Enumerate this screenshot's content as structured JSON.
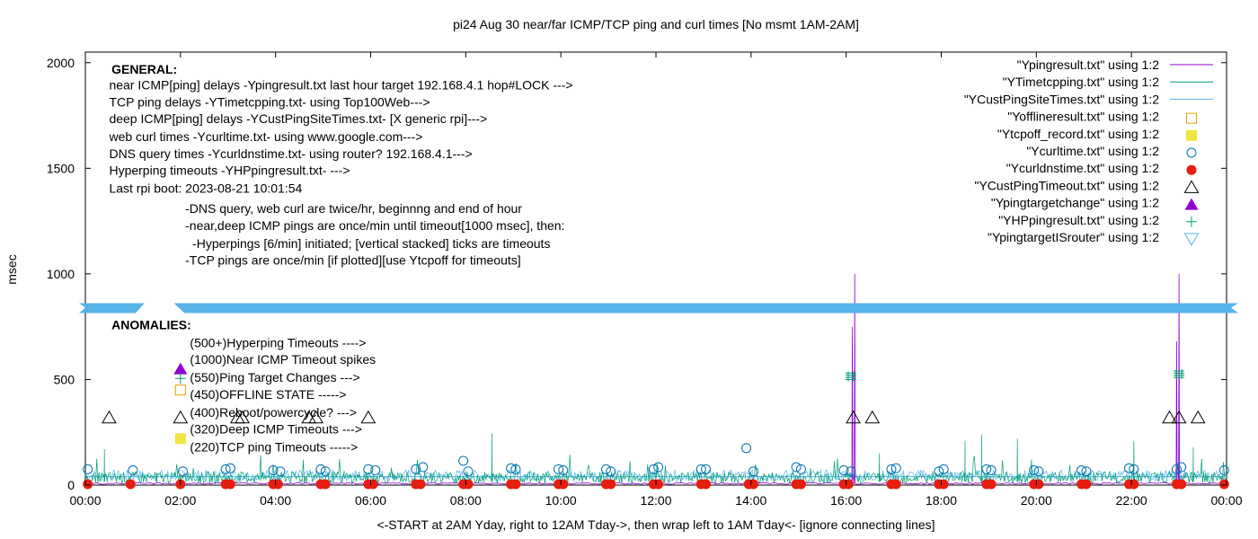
{
  "chart_data": {
    "type": "line",
    "title": "pi24 Aug 30  near/far ICMP/TCP ping and curl times [No msmt 1AM-2AM]",
    "xlabel": "<-START at 2AM Yday, right to 12AM Tday->, then wrap left to 1AM Tday<- [ignore connecting lines]",
    "ylabel": "msec",
    "xlim": [
      0,
      24
    ],
    "ylim": [
      0,
      2050
    ],
    "x_ticks": [
      "00:00",
      "02:00",
      "04:00",
      "06:00",
      "08:00",
      "10:00",
      "12:00",
      "14:00",
      "16:00",
      "18:00",
      "20:00",
      "22:00",
      "00:00"
    ],
    "y_ticks": [
      "0",
      "500",
      "1000",
      "1500",
      "2000"
    ],
    "grid": false,
    "legend_position": "top-right",
    "legend": [
      {
        "label": "\"Ypingresult.txt\" using 1:2",
        "color": "#9400d3",
        "marker": "line"
      },
      {
        "label": "\"YTimetcpping.txt\" using 1:2",
        "color": "#009e73",
        "marker": "line"
      },
      {
        "label": "\"YCustPingSiteTimes.txt\" using 1:2",
        "color": "#56b4e9",
        "marker": "line"
      },
      {
        "label": "\"Yofflineresult.txt\" using 1:2",
        "color": "#e69f00",
        "marker": "open-square"
      },
      {
        "label": "\"Ytcpoff_record.txt\" using 1:2",
        "color": "#f0e442",
        "marker": "filled-square"
      },
      {
        "label": "\"Ycurltime.txt\" using 1:2",
        "color": "#0072b2",
        "marker": "open-circle"
      },
      {
        "label": "\"Ycurldnstime.txt\" using 1:2",
        "color": "#e51e10",
        "marker": "filled-circle"
      },
      {
        "label": "\"YCustPingTimeout.txt\" using 1:2",
        "color": "#000000",
        "marker": "open-triangle"
      },
      {
        "label": "\"Ypingtargetchange\" using 1:2",
        "color": "#9400d3",
        "marker": "filled-triangle"
      },
      {
        "label": "\"YHPpingresult.txt\" using 1:2",
        "color": "#009e73",
        "marker": "plus"
      },
      {
        "label": "\"YpingtargetISrouter\" using 1:2",
        "color": "#56b4e9",
        "marker": "open-triangle-down"
      }
    ],
    "series": [
      {
        "name": "\"Ypingresult.txt\" using 1:2",
        "note_baseline": 8,
        "spikes": [
          {
            "x": 16.18,
            "y": 1000
          },
          {
            "x": 16.13,
            "y": 750
          },
          {
            "x": 23.0,
            "y": 1000
          },
          {
            "x": 22.95,
            "y": 680
          }
        ]
      },
      {
        "name": "\"YTimetcpping.txt\" using 1:2",
        "baseline": 25,
        "spikes": [
          {
            "x": 0.4,
            "y": 170
          },
          {
            "x": 1.5,
            "y": 60
          },
          {
            "x": 8.55,
            "y": 245
          },
          {
            "x": 16.7,
            "y": 150
          },
          {
            "x": 18.5,
            "y": 210
          },
          {
            "x": 18.85,
            "y": 240
          },
          {
            "x": 19.6,
            "y": 220
          },
          {
            "x": 22.05,
            "y": 210
          },
          {
            "x": 23.3,
            "y": 180
          }
        ]
      },
      {
        "name": "\"YCustPingSiteTimes.txt\" using 1:2",
        "baseline": 38,
        "flat_line_y": 40
      },
      {
        "name": "\"Ycurltime.txt\" using 1:2",
        "points": [
          [
            0.05,
            75
          ],
          [
            1.0,
            70
          ],
          [
            2.05,
            65
          ],
          [
            2.95,
            75
          ],
          [
            3.05,
            80
          ],
          [
            3.95,
            70
          ],
          [
            4.1,
            65
          ],
          [
            4.95,
            75
          ],
          [
            5.05,
            65
          ],
          [
            5.95,
            75
          ],
          [
            6.1,
            70
          ],
          [
            6.95,
            75
          ],
          [
            7.1,
            85
          ],
          [
            7.95,
            115
          ],
          [
            8.05,
            65
          ],
          [
            8.95,
            80
          ],
          [
            9.05,
            75
          ],
          [
            9.95,
            75
          ],
          [
            10.05,
            70
          ],
          [
            10.95,
            75
          ],
          [
            11.05,
            65
          ],
          [
            11.95,
            75
          ],
          [
            12.05,
            85
          ],
          [
            12.95,
            75
          ],
          [
            13.05,
            75
          ],
          [
            13.9,
            175
          ],
          [
            14.05,
            65
          ],
          [
            14.95,
            85
          ],
          [
            15.05,
            75
          ],
          [
            15.95,
            70
          ],
          [
            16.1,
            65
          ],
          [
            16.95,
            75
          ],
          [
            17.05,
            80
          ],
          [
            17.95,
            65
          ],
          [
            18.05,
            75
          ],
          [
            18.95,
            75
          ],
          [
            19.05,
            70
          ],
          [
            19.95,
            70
          ],
          [
            20.05,
            65
          ],
          [
            20.95,
            70
          ],
          [
            21.05,
            65
          ],
          [
            21.95,
            80
          ],
          [
            22.05,
            75
          ],
          [
            22.95,
            75
          ],
          [
            23.05,
            85
          ],
          [
            23.95,
            70
          ]
        ]
      },
      {
        "name": "\"Ycurldnstime.txt\" using 1:2",
        "points": [
          [
            0.05,
            0
          ],
          [
            0.95,
            0
          ],
          [
            2.0,
            0
          ],
          [
            2.95,
            0
          ],
          [
            3.05,
            0
          ],
          [
            3.95,
            0
          ],
          [
            4.05,
            0
          ],
          [
            4.95,
            0
          ],
          [
            5.05,
            0
          ],
          [
            5.95,
            0
          ],
          [
            6.05,
            0
          ],
          [
            6.95,
            0
          ],
          [
            7.05,
            0
          ],
          [
            7.95,
            0
          ],
          [
            8.05,
            0
          ],
          [
            8.95,
            0
          ],
          [
            9.05,
            0
          ],
          [
            9.95,
            0
          ],
          [
            10.05,
            0
          ],
          [
            10.95,
            0
          ],
          [
            11.05,
            0
          ],
          [
            11.95,
            0
          ],
          [
            12.05,
            0
          ],
          [
            12.95,
            0
          ],
          [
            13.05,
            0
          ],
          [
            13.95,
            0
          ],
          [
            14.05,
            0
          ],
          [
            14.95,
            0
          ],
          [
            15.05,
            0
          ],
          [
            15.95,
            0
          ],
          [
            16.05,
            0
          ],
          [
            16.95,
            0
          ],
          [
            17.05,
            0
          ],
          [
            17.95,
            0
          ],
          [
            18.05,
            0
          ],
          [
            18.95,
            0
          ],
          [
            19.05,
            0
          ],
          [
            19.95,
            0
          ],
          [
            20.05,
            0
          ],
          [
            20.95,
            0
          ],
          [
            21.05,
            0
          ],
          [
            21.95,
            0
          ],
          [
            22.05,
            0
          ],
          [
            22.95,
            0
          ],
          [
            23.05,
            0
          ],
          [
            23.95,
            0
          ]
        ]
      },
      {
        "name": "\"YCustPingTimeout.txt\" using 1:2",
        "points": [
          [
            0.5,
            320
          ],
          [
            3.2,
            320
          ],
          [
            3.3,
            320
          ],
          [
            4.7,
            320
          ],
          [
            4.85,
            320
          ],
          [
            5.95,
            320
          ],
          [
            16.15,
            320
          ],
          [
            16.55,
            320
          ],
          [
            22.8,
            320
          ],
          [
            23.0,
            320
          ],
          [
            23.4,
            320
          ]
        ]
      },
      {
        "name": "\"YHPpingresult.txt\" using 1:2",
        "points": [
          [
            16.1,
            500
          ],
          [
            16.1,
            510
          ],
          [
            16.1,
            520
          ],
          [
            16.1,
            530
          ],
          [
            23.0,
            510
          ],
          [
            23.0,
            520
          ],
          [
            23.0,
            530
          ],
          [
            23.0,
            540
          ]
        ]
      }
    ],
    "annotations": [
      {
        "text": "GENERAL:",
        "x": 0.55,
        "y": 1970,
        "bold": true
      },
      {
        "text": "near ICMP[ping] delays -Ypingresult.txt last hour target 192.168.4.1 hop#LOCK --->",
        "x": 0.5,
        "y": 1895
      },
      {
        "text": "TCP ping delays -YTimetcpping.txt- using Top100Web--->",
        "x": 0.5,
        "y": 1815
      },
      {
        "text": "deep ICMP[ping] delays -YCustPingSiteTimes.txt- [X generic rpi]--->",
        "x": 0.5,
        "y": 1735
      },
      {
        "text": "web curl times -Ycurltime.txt- using www.google.com--->",
        "x": 0.5,
        "y": 1650
      },
      {
        "text": "DNS query times -Ycurldnstime.txt- using router? 192.168.4.1--->",
        "x": 0.5,
        "y": 1570
      },
      {
        "text": "Hyperping timeouts -YHPpingresult.txt- --->",
        "x": 0.5,
        "y": 1490
      },
      {
        "text": "Last rpi boot: 2023-08-21 10:01:54",
        "x": 0.5,
        "y": 1405
      },
      {
        "text": "-DNS query, web curl are twice/hr, beginnng and end of hour",
        "x": 2.1,
        "y": 1310
      },
      {
        "text": "-near,deep ICMP pings are once/min until timeout[1000 msec], then:",
        "x": 2.1,
        "y": 1230
      },
      {
        "text": "-Hyperpings [6/min] initiated; [vertical stacked] ticks are timeouts",
        "x": 2.25,
        "y": 1145
      },
      {
        "text": "-TCP pings are once/min [if plotted][use Ytcpoff for timeouts]",
        "x": 2.1,
        "y": 1065
      },
      {
        "text": "ANOMALIES:",
        "x": 0.55,
        "y": 760,
        "bold": true
      },
      {
        "text": "(500+)Hyperping Timeouts ---->",
        "x": 2.2,
        "y": 675
      },
      {
        "text": "(1000)Near ICMP Timeout spikes",
        "x": 2.2,
        "y": 595
      },
      {
        "text": "(550)Ping Target Changes --->",
        "x": 2.2,
        "y": 510
      },
      {
        "text": "(450)OFFLINE STATE ----->",
        "x": 2.2,
        "y": 430
      },
      {
        "text": "(400)Reboot/powercycle? --->",
        "x": 2.2,
        "y": 345
      },
      {
        "text": "(320)Deep ICMP Timeouts --->",
        "x": 2.2,
        "y": 265
      },
      {
        "text": "(220)TCP ping Timeouts ----->",
        "x": 2.2,
        "y": 180
      }
    ],
    "divider_band": {
      "y": 840,
      "color": "#56b4e9",
      "gap_x": [
        1.15,
        1.9
      ]
    },
    "anomaly_markers": [
      {
        "type": "filled-triangle",
        "color": "#9400d3",
        "x": 2.0,
        "y": 550
      },
      {
        "type": "plus",
        "color": "#009e73",
        "x": 2.0,
        "y": 505
      },
      {
        "type": "open-square",
        "color": "#e69f00",
        "x": 2.0,
        "y": 450
      },
      {
        "type": "open-triangle",
        "color": "#000000",
        "x": 2.0,
        "y": 320
      },
      {
        "type": "filled-square",
        "color": "#f0e442",
        "x": 2.0,
        "y": 220
      }
    ]
  }
}
